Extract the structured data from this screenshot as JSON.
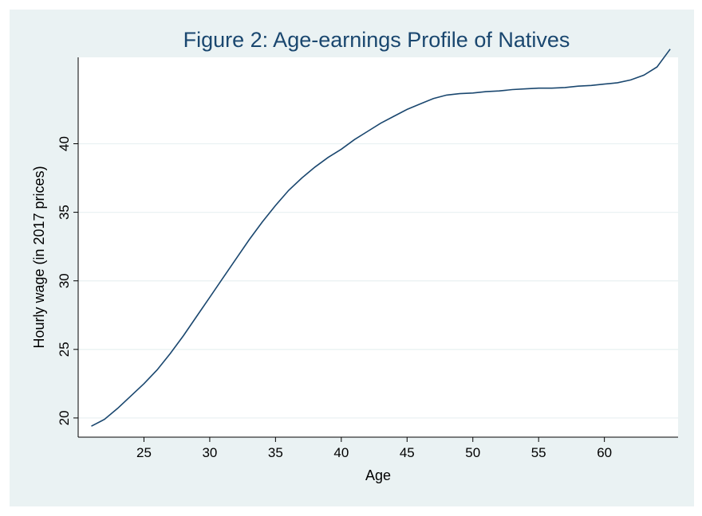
{
  "colors": {
    "outer_background": "#eaf2f3",
    "plot_background": "#ffffff",
    "line": "#1a476f",
    "grid": "#eaf2f3",
    "title": "#1a476f"
  },
  "chart_data": {
    "type": "line",
    "title": "Figure 2: Age-earnings Profile of Natives",
    "xlabel": "Age",
    "ylabel": "Hourly wage (in 2017 prices)",
    "xlim": [
      20,
      65.6
    ],
    "ylim": [
      18.6,
      46.3
    ],
    "x_ticks": [
      25,
      30,
      35,
      40,
      45,
      50,
      55,
      60
    ],
    "y_ticks": [
      20,
      25,
      30,
      35,
      40
    ],
    "grid": true,
    "legend": "none",
    "series": [
      {
        "x": [
          21,
          22,
          23,
          24,
          25,
          26,
          27,
          28,
          29,
          30,
          31,
          32,
          33,
          34,
          35,
          36,
          37,
          38,
          39,
          40,
          41,
          42,
          43,
          44,
          45,
          46,
          47,
          48,
          49,
          50,
          51,
          52,
          53,
          54,
          55,
          56,
          57,
          58,
          59,
          60,
          61,
          62,
          63,
          64,
          65
        ],
        "y": [
          19.4,
          19.9,
          20.7,
          21.6,
          22.5,
          23.5,
          24.7,
          26.0,
          27.4,
          28.8,
          30.2,
          31.6,
          33.0,
          34.3,
          35.5,
          36.6,
          37.5,
          38.3,
          39.0,
          39.6,
          40.3,
          40.9,
          41.5,
          42.0,
          42.5,
          42.9,
          43.3,
          43.55,
          43.65,
          43.7,
          43.8,
          43.85,
          43.95,
          44.0,
          44.05,
          44.05,
          44.1,
          44.2,
          44.25,
          44.35,
          44.45,
          44.65,
          45.0,
          45.6,
          46.9
        ]
      }
    ]
  }
}
